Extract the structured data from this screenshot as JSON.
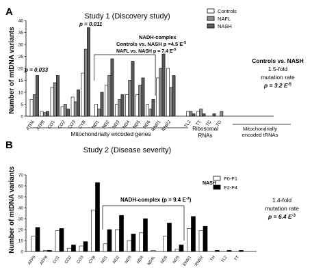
{
  "colors": {
    "controls": "#ffffff",
    "nafl": "#8c8c8c",
    "nash": "#595959",
    "f0f1": "#ffffff",
    "f2f4": "#000000",
    "outline": "#000000"
  },
  "chart_data": [
    {
      "type": "bar",
      "panel_label": "A",
      "title": "Study 1 (Discovery study)",
      "ylabel": "Number of mtDNA variants",
      "ylim": [
        0,
        40
      ],
      "yticks": [
        0,
        5,
        10,
        15,
        20,
        25,
        30,
        35,
        40
      ],
      "grid": false,
      "legend_position": "top-right",
      "categories": [
        "ATP6",
        "ATP8",
        "CO1",
        "CO2",
        "CO3",
        "CYB",
        "ND1",
        "ND2",
        "ND3",
        "ND4",
        "ND5",
        "ND6",
        "RNR1",
        "RNR2",
        "TL2",
        "TT",
        "TC",
        "TG"
      ],
      "series": [
        {
          "name": "Controls",
          "color_key": "controls",
          "values": [
            7,
            2,
            12,
            4,
            8,
            18,
            5,
            13,
            5,
            9,
            9,
            5,
            16,
            20,
            2,
            2,
            0,
            0
          ]
        },
        {
          "name": "NAFL",
          "color_key": "nafl",
          "values": [
            9,
            1.5,
            14,
            5,
            6,
            28,
            3,
            17,
            7,
            15,
            13,
            3,
            20,
            12,
            2,
            3,
            0,
            2
          ]
        },
        {
          "name": "NASH",
          "color_key": "nash",
          "values": [
            17,
            2,
            17,
            3,
            11,
            37,
            10,
            24,
            9,
            23,
            16,
            7,
            26,
            17,
            1,
            1,
            1,
            0
          ]
        }
      ],
      "group_labels": [
        "Mitochondrially encoded genes",
        "Ribosomal RNAs",
        "Mitochondrially encoded tRNAs"
      ],
      "annotations": {
        "atp6_p": "p = 0.033",
        "cyb_p": "p = 0.011",
        "complex_title": "NADH-complex",
        "complex_line1": "Controls vs. NASH  p =4.5 E",
        "complex_line1_exp": "-5",
        "complex_line2": "NAFL vs. NASH  p = 7.4 E",
        "complex_line2_exp": "-5",
        "side_title": "Controls vs. NASH",
        "side_line2": "1.5-fold",
        "side_line3": "mutation rate",
        "side_p": "p = 3.2  E",
        "side_p_exp": "-5"
      }
    },
    {
      "type": "bar",
      "panel_label": "B",
      "title": "Study 2 (Disease severity)",
      "ylabel": "Number of mtDNA variants",
      "ylim": [
        0,
        70
      ],
      "yticks": [
        0,
        10,
        20,
        30,
        40,
        50,
        60,
        70
      ],
      "grid": false,
      "legend_position": "top-right",
      "legend_group": "NASH",
      "categories": [
        "ATP6",
        "ATP8",
        "CO1",
        "CO2",
        "CO3",
        "CYB",
        "ND1",
        "ND2",
        "ND3",
        "ND4",
        "ND4L",
        "ND5",
        "ND6",
        "RNR1",
        "RNR2",
        "TH",
        "TL2",
        "TT"
      ],
      "series": [
        {
          "name": "F0-F1",
          "color_key": "f0f1",
          "values": [
            14,
            1,
            19,
            3,
            5,
            38,
            7,
            20,
            10,
            17,
            1,
            14,
            2,
            21,
            19,
            0,
            0,
            0
          ]
        },
        {
          "name": "F2-F4",
          "color_key": "f2f4",
          "values": [
            22,
            1,
            21,
            6,
            9,
            63,
            20,
            33,
            16,
            30,
            0,
            26,
            6,
            32,
            23,
            1,
            1,
            1
          ]
        }
      ],
      "annotations": {
        "complex": "NADH-complex (p = 9.4 E",
        "complex_exp": "-3",
        "complex_close": ")",
        "side_line1": "1.4-fold",
        "side_line2": "mutation rate",
        "side_p": "p = 6.4 E",
        "side_p_exp": "-3"
      }
    }
  ]
}
